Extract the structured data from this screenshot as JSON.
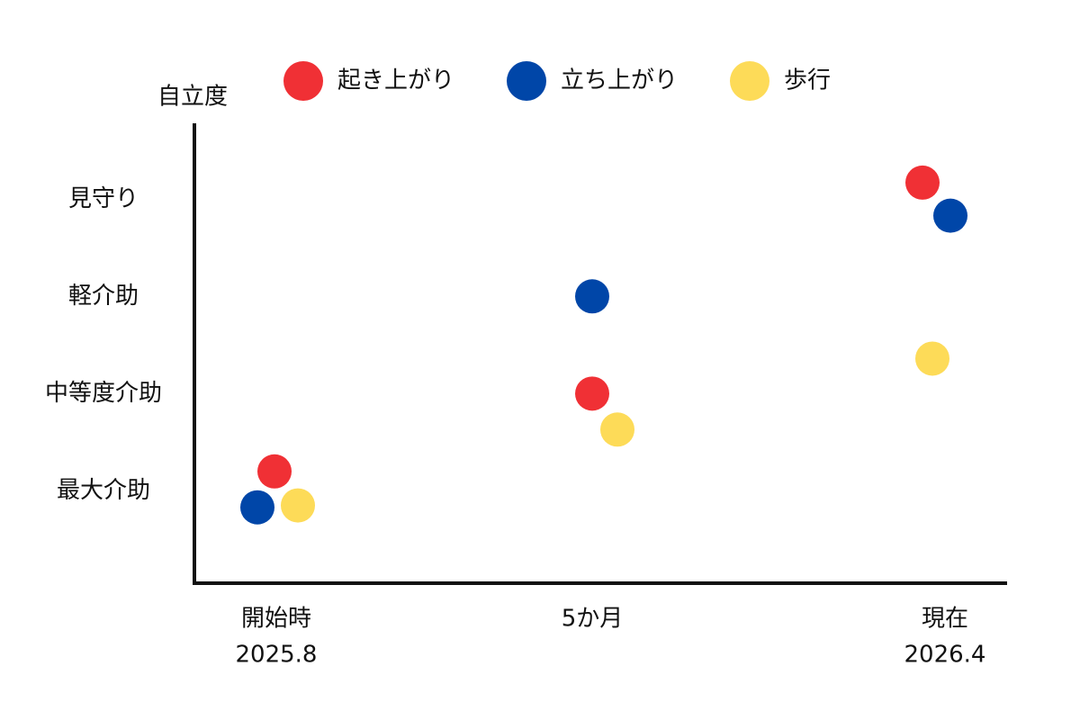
{
  "chart_data": {
    "type": "scatter",
    "y_axis_label": "自立度",
    "categories": [
      "開始時",
      "5か月",
      "現在"
    ],
    "category_dates": [
      "2025.8",
      null,
      "2026.4"
    ],
    "ylim": [
      0.05,
      4.78
    ],
    "yticks": [
      {
        "value": 1,
        "label": "最大介助"
      },
      {
        "value": 2,
        "label": "中等度介助"
      },
      {
        "value": 3,
        "label": "軽介助"
      },
      {
        "value": 4,
        "label": "見守り"
      }
    ],
    "grid": false,
    "legend": "top",
    "series": [
      {
        "name": "起き上がり",
        "color": "#f03035",
        "values": [
          1.2,
          2.0,
          4.17
        ]
      },
      {
        "name": "立ち上がり",
        "color": "#0046a8",
        "values": [
          0.83,
          3.0,
          3.83
        ]
      },
      {
        "name": "歩行",
        "color": "#fddb58",
        "values": [
          0.85,
          1.63,
          2.36
        ]
      }
    ]
  }
}
